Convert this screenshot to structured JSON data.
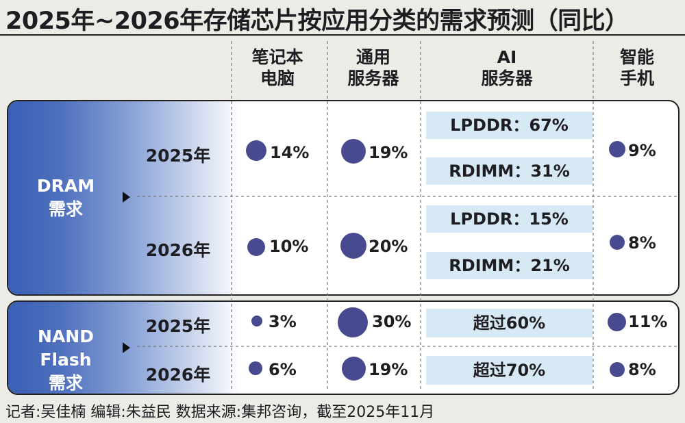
{
  "title": "2025年~2026年存储芯片按应用分类的需求预测（同比）",
  "columns": {
    "laptop": [
      "笔记本",
      "电脑"
    ],
    "server": [
      "通用",
      "服务器"
    ],
    "ai_server": [
      "AI",
      "服务器"
    ],
    "smartphone": [
      "智能",
      "手机"
    ]
  },
  "dram": {
    "label": [
      "DRAM",
      "需求"
    ],
    "rows": [
      {
        "year": "2025年",
        "laptop": "14%",
        "server": "19%",
        "ai_lines": [
          "LPDDR：67%",
          "RDIMM：31%"
        ],
        "smartphone": "9%"
      },
      {
        "year": "2026年",
        "laptop": "10%",
        "server": "20%",
        "ai_lines": [
          "LPDDR：15%",
          "RDIMM：21%"
        ],
        "smartphone": "8%"
      }
    ]
  },
  "nand": {
    "label": [
      "NAND Flash",
      "需求"
    ],
    "rows": [
      {
        "year": "2025年",
        "laptop": "3%",
        "server": "30%",
        "ai_text": "超过60%",
        "smartphone": "11%"
      },
      {
        "year": "2026年",
        "laptop": "6%",
        "server": "19%",
        "ai_text": "超过70%",
        "smartphone": "8%"
      }
    ]
  },
  "chart_data": {
    "type": "table",
    "title": "2025年~2026年存储芯片按应用分类的需求预测（同比）",
    "columns": [
      "笔记本电脑",
      "通用服务器",
      "AI服务器",
      "智能手机"
    ],
    "groups": [
      {
        "name": "DRAM需求",
        "rows": [
          {
            "year": "2025年",
            "values": {
              "笔记本电脑": 14,
              "通用服务器": 19,
              "AI服务器": {
                "LPDDR": 67,
                "RDIMM": 31
              },
              "智能手机": 9
            }
          },
          {
            "year": "2026年",
            "values": {
              "笔记本电脑": 10,
              "通用服务器": 20,
              "AI服务器": {
                "LPDDR": 15,
                "RDIMM": 21
              },
              "智能手机": 8
            }
          }
        ]
      },
      {
        "name": "NAND Flash需求",
        "rows": [
          {
            "year": "2025年",
            "values": {
              "笔记本电脑": 3,
              "通用服务器": 30,
              "AI服务器": "超过60%",
              "智能手机": 11
            }
          },
          {
            "year": "2026年",
            "values": {
              "笔记本电脑": 6,
              "通用服务器": 19,
              "AI服务器": "超过70%",
              "智能手机": 8
            }
          }
        ]
      }
    ],
    "unit": "%",
    "marker_color": "#474a8e"
  },
  "footer": "记者:吴佳楠  编辑:朱益民  数据来源:集邦咨询，截至2025年11月"
}
